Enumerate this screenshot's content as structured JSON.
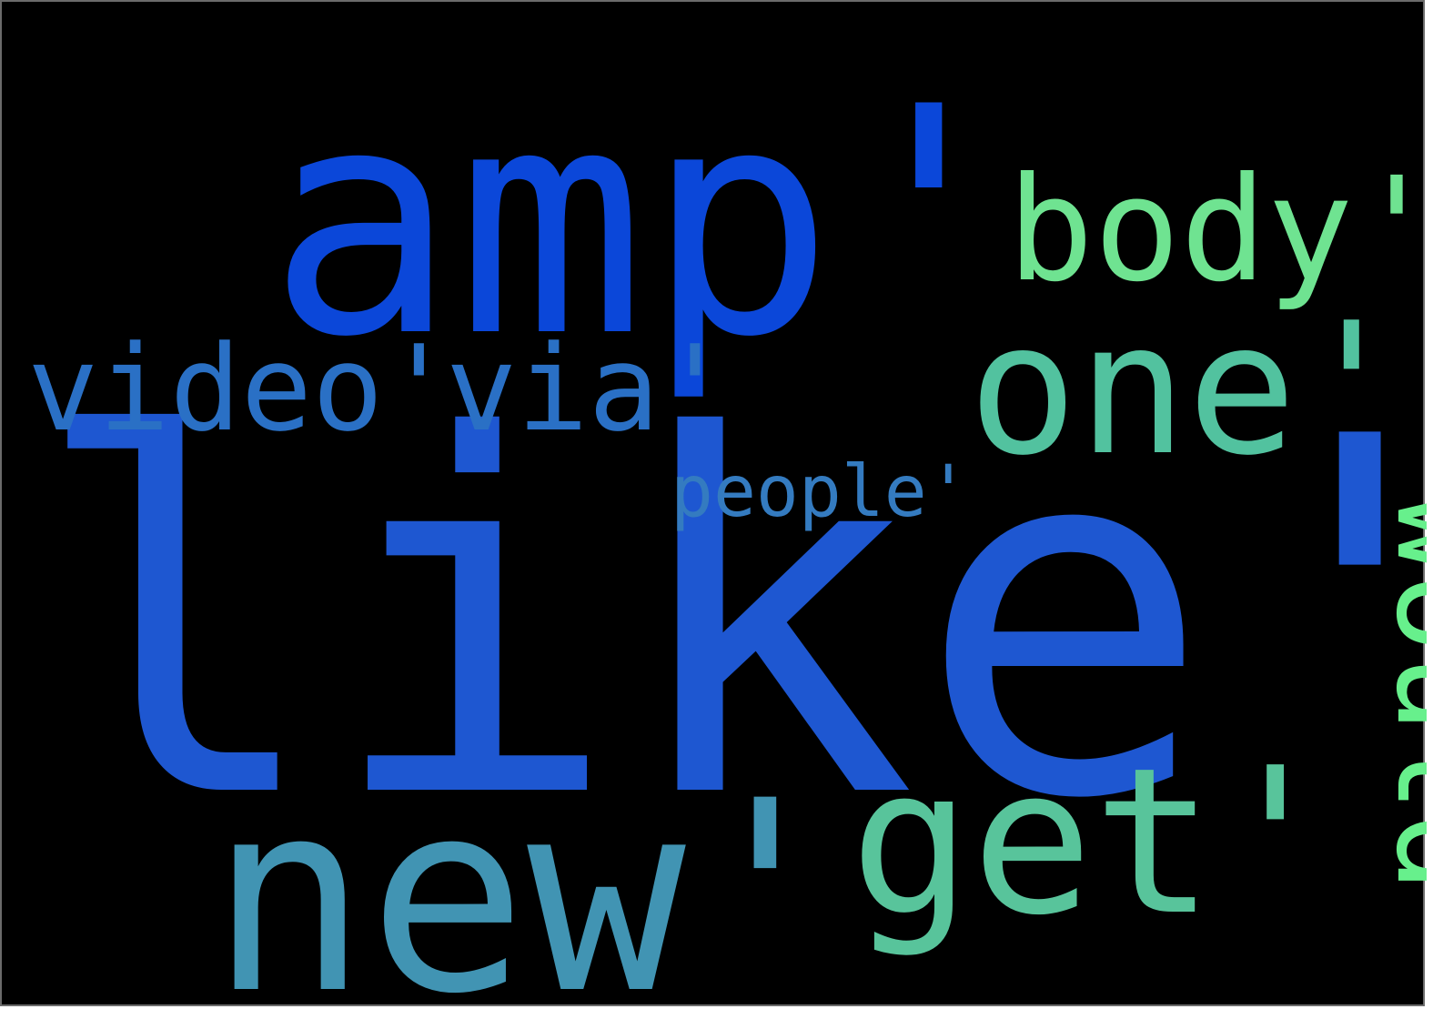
{
  "background_color": "#000000",
  "words": [
    {
      "text": "amp'",
      "color": "#0b47d9"
    },
    {
      "text": "like'",
      "color": "#1e57d1"
    },
    {
      "text": "body'",
      "color": "#6fe391"
    },
    {
      "text": "one'",
      "color": "#52c29f"
    },
    {
      "text": "video'",
      "color": "#2a70c5"
    },
    {
      "text": "via'",
      "color": "#2a70c5"
    },
    {
      "text": "people'",
      "color": "#347bc0"
    },
    {
      "text": "would",
      "color": "#67f08c"
    },
    {
      "text": "new'",
      "color": "#4194b3"
    },
    {
      "text": "get'",
      "color": "#58c49b"
    }
  ]
}
